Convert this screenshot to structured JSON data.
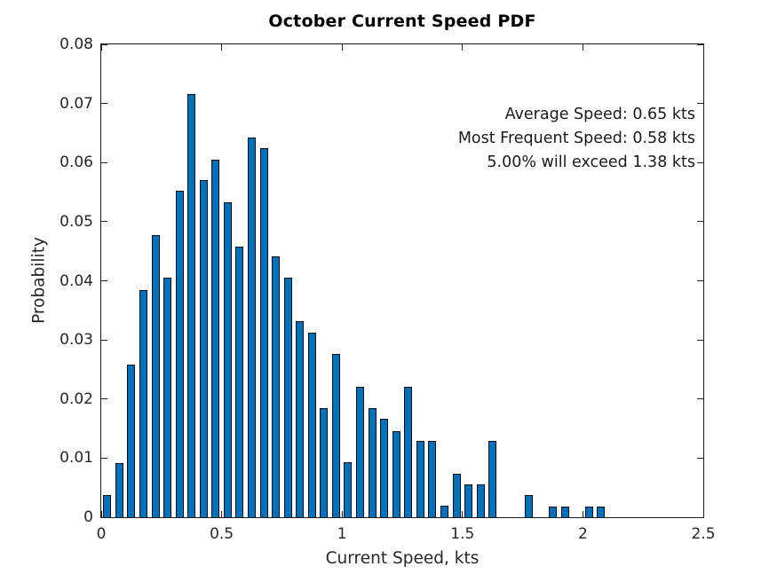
{
  "figure": {
    "background": "#ffffff",
    "title": "October Current Speed PDF",
    "xlabel": "Current Speed, kts",
    "ylabel": "Probability"
  },
  "chart_data": {
    "type": "bar",
    "title": "October Current Speed PDF",
    "xlabel": "Current Speed, kts",
    "ylabel": "Probability",
    "grid": false,
    "legend": null,
    "xlim": [
      0,
      2.5
    ],
    "ylim": [
      0,
      0.08
    ],
    "xticks": [
      0,
      0.5,
      1,
      1.5,
      2,
      2.5
    ],
    "xtick_labels": [
      "0",
      "0.5",
      "1",
      "1.5",
      "2",
      "2.5"
    ],
    "yticks": [
      0,
      0.01,
      0.02,
      0.03,
      0.04,
      0.05,
      0.06,
      0.07,
      0.08
    ],
    "ytick_labels": [
      "0",
      "0.01",
      "0.02",
      "0.03",
      "0.04",
      "0.05",
      "0.06",
      "0.07",
      "0.08"
    ],
    "bin_width": 0.05,
    "bar_width_units": 0.033,
    "x": [
      0.025,
      0.075,
      0.125,
      0.175,
      0.225,
      0.275,
      0.325,
      0.375,
      0.425,
      0.475,
      0.525,
      0.575,
      0.625,
      0.675,
      0.725,
      0.775,
      0.825,
      0.875,
      0.925,
      0.975,
      1.025,
      1.075,
      1.125,
      1.175,
      1.225,
      1.275,
      1.325,
      1.375,
      1.425,
      1.475,
      1.525,
      1.575,
      1.625,
      1.775,
      1.875,
      1.925,
      2.025,
      2.075
    ],
    "values": [
      0.0037,
      0.0092,
      0.0258,
      0.0385,
      0.0478,
      0.0406,
      0.0552,
      0.0716,
      0.0571,
      0.0605,
      0.0533,
      0.0458,
      0.0643,
      0.0625,
      0.0441,
      0.0405,
      0.0332,
      0.0312,
      0.0184,
      0.0276,
      0.0093,
      0.022,
      0.0184,
      0.0166,
      0.0146,
      0.022,
      0.0129,
      0.0129,
      0.002,
      0.0073,
      0.0055,
      0.0055,
      0.0129,
      0.0038,
      0.0018,
      0.0018,
      0.0018,
      0.0018
    ],
    "annotations": [
      "Average Speed: 0.65 kts",
      "Most Frequent Speed: 0.58 kts",
      "5.00% will exceed 1.38 kts"
    ],
    "colors": {
      "bar_fill": "#0072BD",
      "bar_edge": "#000a14",
      "axis": "#1a1a1a",
      "tick_label": "#262626",
      "text": "#000000"
    }
  }
}
